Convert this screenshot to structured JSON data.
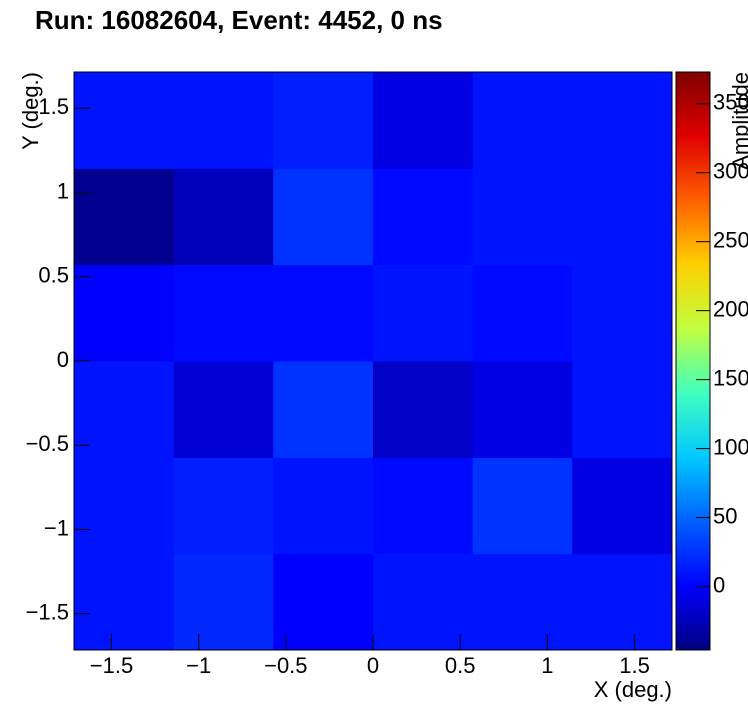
{
  "chart_data": {
    "type": "heatmap",
    "title": "Run: 16082604, Event: 4452, 0 ns",
    "x_label": "X (deg.)",
    "y_label": "Y (deg.)",
    "z_label": "Amplitude",
    "x_bins": [
      -1.715,
      -1.143,
      -0.572,
      0,
      0.572,
      1.143,
      1.715
    ],
    "y_bins": [
      -1.715,
      -1.143,
      -0.572,
      0,
      0.572,
      1.143,
      1.715
    ],
    "values": [
      [
        10,
        20,
        0,
        10,
        10,
        10
      ],
      [
        10,
        15,
        10,
        5,
        25,
        -10
      ],
      [
        10,
        -15,
        25,
        -20,
        -10,
        10
      ],
      [
        0,
        5,
        5,
        10,
        5,
        10
      ],
      [
        -40,
        -25,
        25,
        5,
        10,
        10
      ],
      [
        10,
        10,
        15,
        -10,
        10,
        10
      ]
    ],
    "xlim": [
      -1.715,
      1.715
    ],
    "ylim": [
      -1.715,
      1.715
    ],
    "zlim": [
      -46,
      373
    ],
    "xticks": [
      {
        "value": -1.5,
        "label": "−1.5"
      },
      {
        "value": -1,
        "label": "−1"
      },
      {
        "value": -0.5,
        "label": "−0.5"
      },
      0,
      0.5,
      1,
      1.5
    ],
    "yticks": [
      {
        "value": -1.5,
        "label": "−1.5"
      },
      {
        "value": -1,
        "label": "−1"
      },
      {
        "value": -0.5,
        "label": "−0.5"
      },
      0,
      0.5,
      1,
      1.5
    ],
    "zticks": [
      0,
      50,
      100,
      150,
      200,
      250,
      300,
      350
    ],
    "colorscale": [
      "#00007f",
      "#0000ff",
      "#0060ff",
      "#00c8ff",
      "#40ffbf",
      "#c0ff40",
      "#ffd000",
      "#ff6000",
      "#e00000",
      "#7f0000"
    ]
  }
}
